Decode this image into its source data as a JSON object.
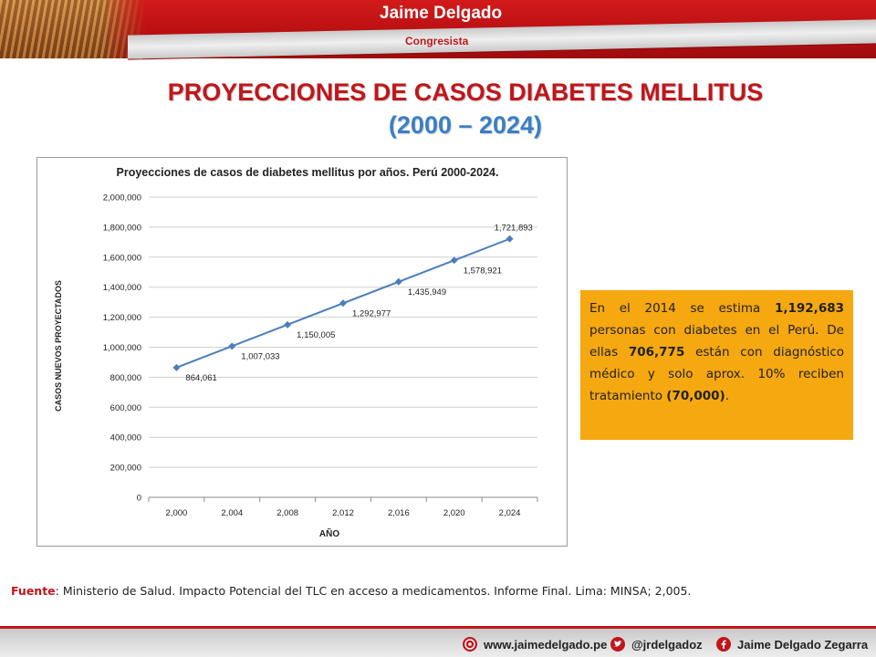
{
  "header": {
    "name": "Jaime Delgado",
    "role": "Congresista"
  },
  "slide": {
    "title": "PROYECCIONES DE CASOS DIABETES MELLITUS",
    "subtitle": "(2000 – 2024)"
  },
  "chart_data": {
    "type": "line",
    "title": "Proyecciones de casos de diabetes mellitus por años. Perú 2000-2024.",
    "xlabel": "AÑO",
    "ylabel": "CASOS NUEVOS PROYECTADOS",
    "categories": [
      "2,000",
      "2,004",
      "2,008",
      "2,012",
      "2,016",
      "2,020",
      "2,024"
    ],
    "series": [
      {
        "values": [
          864061,
          1007033,
          1150005,
          1292977,
          1435949,
          1578921,
          1721893
        ],
        "labels": [
          "864,061",
          "1,007,033",
          "1,150,005",
          "1,292,977",
          "1,435,949",
          "1,578,921",
          "1,721,893"
        ],
        "color": "#4a7ebb"
      }
    ],
    "yticks": [
      "0",
      "200,000",
      "400,000",
      "600,000",
      "800,000",
      "1,000,000",
      "1,200,000",
      "1,400,000",
      "1,600,000",
      "1,800,000",
      "2,000,000"
    ],
    "ylim": [
      0,
      2000000
    ],
    "grid": true
  },
  "callout": {
    "text1": "En el 2014 se estima ",
    "bold1": "1,192,683",
    "text2": " personas con diabetes en el Perú. De ellas  ",
    "bold2": "706,775",
    "text3": " están con diagnóstico médico y solo aprox. 10% reciben tratamiento ",
    "bold3": "(70,000)",
    "text4": "."
  },
  "source": {
    "label": "Fuente",
    "text": ": Ministerio de Salud. Impacto Potencial del TLC en acceso a medicamentos. Informe Final. Lima: MINSA; 2,005."
  },
  "footer": {
    "website": "www.jaimedelgado.pe",
    "twitter": "@jrdelgadoz",
    "facebook": "Jaime Delgado Zegarra"
  },
  "colors": {
    "accent_red": "#c0161b",
    "accent_blue": "#3a7fc4",
    "callout_bg": "#f5a810",
    "series": "#4a7ebb"
  }
}
